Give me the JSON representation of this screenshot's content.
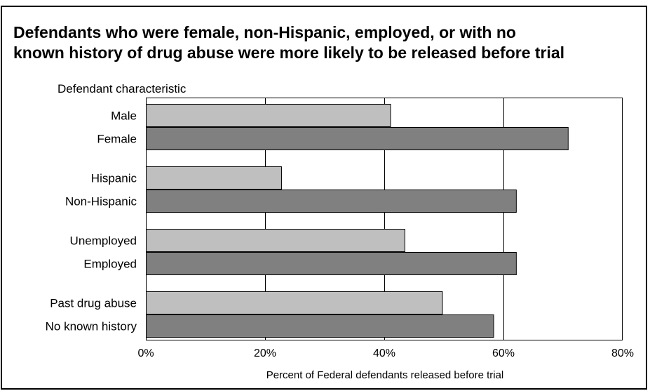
{
  "title_lines": [
    "Defendants who were female, non-Hispanic, employed, or with no",
    "known history of drug abuse were more likely to be released before trial"
  ],
  "chart_data": {
    "type": "bar",
    "orientation": "horizontal",
    "category_axis_title": "Defendant characteristic",
    "xlabel": "Percent of Federal defendants released before trial",
    "xlim": [
      0,
      80
    ],
    "xticks": [
      0,
      20,
      40,
      60,
      80
    ],
    "xtick_labels": [
      "0%",
      "20%",
      "40%",
      "60%",
      "80%"
    ],
    "grid": "vertical",
    "groups": [
      {
        "bars": [
          {
            "label": "Male",
            "value": 41,
            "shade": "light"
          },
          {
            "label": "Female",
            "value": 70.8,
            "shade": "dark"
          }
        ]
      },
      {
        "bars": [
          {
            "label": "Hispanic",
            "value": 22.7,
            "shade": "light"
          },
          {
            "label": "Non-Hispanic",
            "value": 62.1,
            "shade": "dark"
          }
        ]
      },
      {
        "bars": [
          {
            "label": "Unemployed",
            "value": 43.4,
            "shade": "light"
          },
          {
            "label": "Employed",
            "value": 62.1,
            "shade": "dark"
          }
        ]
      },
      {
        "bars": [
          {
            "label": "Past drug abuse",
            "value": 49.7,
            "shade": "light"
          },
          {
            "label": "No known history",
            "value": 58.3,
            "shade": "dark"
          }
        ]
      }
    ],
    "colors": {
      "light": "#bfbfbf",
      "dark": "#808080",
      "plot_border": "#000000",
      "grid": "#000000"
    }
  }
}
